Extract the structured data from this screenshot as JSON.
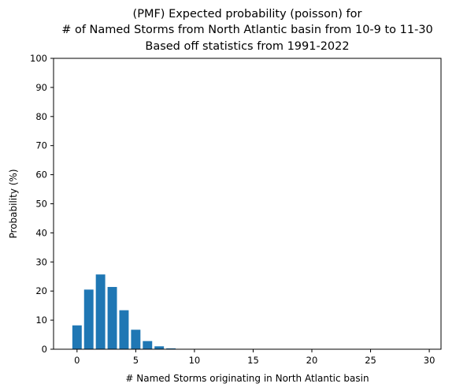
{
  "chart_data": {
    "type": "bar",
    "title_lines": [
      "(PMF) Expected probability (poisson) for",
      "# of Named Storms from North Atlantic basin from 10-9 to 11-30",
      "Based off statistics from 1991-2022"
    ],
    "xlabel": "# Named Storms originating in North Atlantic basin",
    "ylabel": "Probability (%)",
    "xlim": [
      -2,
      31
    ],
    "ylim": [
      0,
      100
    ],
    "xticks": [
      0,
      5,
      10,
      15,
      20,
      25,
      30
    ],
    "yticks": [
      0,
      10,
      20,
      30,
      40,
      50,
      60,
      70,
      80,
      90,
      100
    ],
    "bar_color": "#1f77b4",
    "bar_width": 0.8,
    "grid": false,
    "categories": [
      0,
      1,
      2,
      3,
      4,
      5,
      6,
      7,
      8,
      9,
      10,
      11,
      12,
      13,
      14,
      15,
      16,
      17,
      18,
      19,
      20,
      21,
      22,
      23,
      24,
      25,
      26,
      27,
      28,
      29
    ],
    "values": [
      8.2,
      20.5,
      25.7,
      21.4,
      13.4,
      6.7,
      2.8,
      1.0,
      0.3,
      0.1,
      0.03,
      0,
      0,
      0,
      0,
      0,
      0,
      0,
      0,
      0,
      0,
      0,
      0,
      0,
      0,
      0,
      0,
      0,
      0,
      0
    ]
  }
}
